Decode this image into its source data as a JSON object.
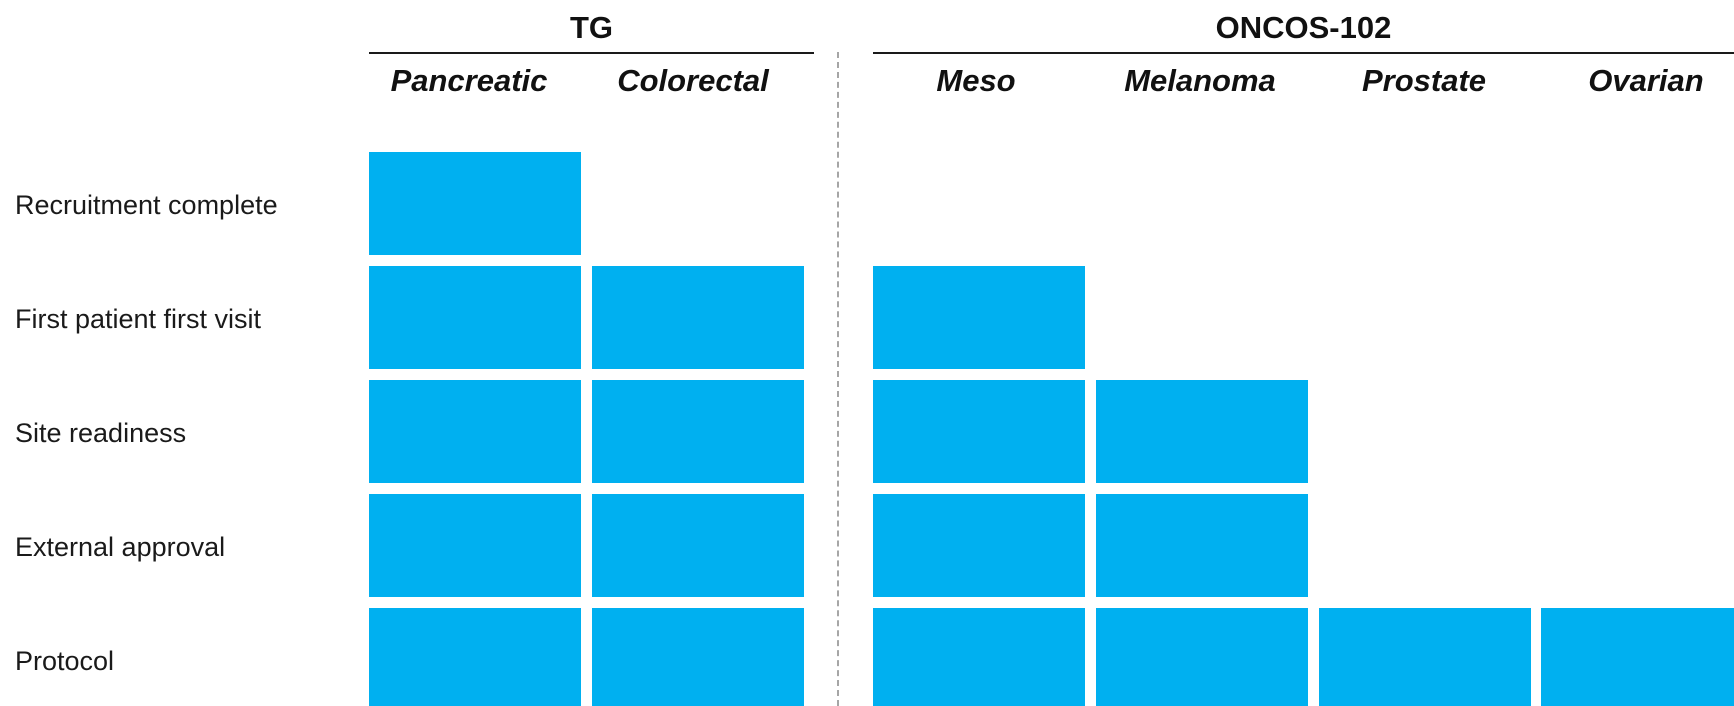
{
  "groups": [
    {
      "title": "TG"
    },
    {
      "title": "ONCOS-102"
    }
  ],
  "columns": [
    {
      "label": "Pancreatic"
    },
    {
      "label": "Colorectal"
    },
    {
      "label": "Meso"
    },
    {
      "label": "Melanoma"
    },
    {
      "label": "Prostate"
    },
    {
      "label": "Ovarian"
    }
  ],
  "rows": [
    {
      "label": "Recruitment complete"
    },
    {
      "label": "First patient first visit"
    },
    {
      "label": "Site readiness"
    },
    {
      "label": "External approval"
    },
    {
      "label": "Protocol"
    }
  ],
  "stage_reached": [
    5,
    4,
    4,
    3,
    1,
    1
  ],
  "colors": {
    "cell": "#00b0f0",
    "divider": "#a6a6a6"
  }
}
